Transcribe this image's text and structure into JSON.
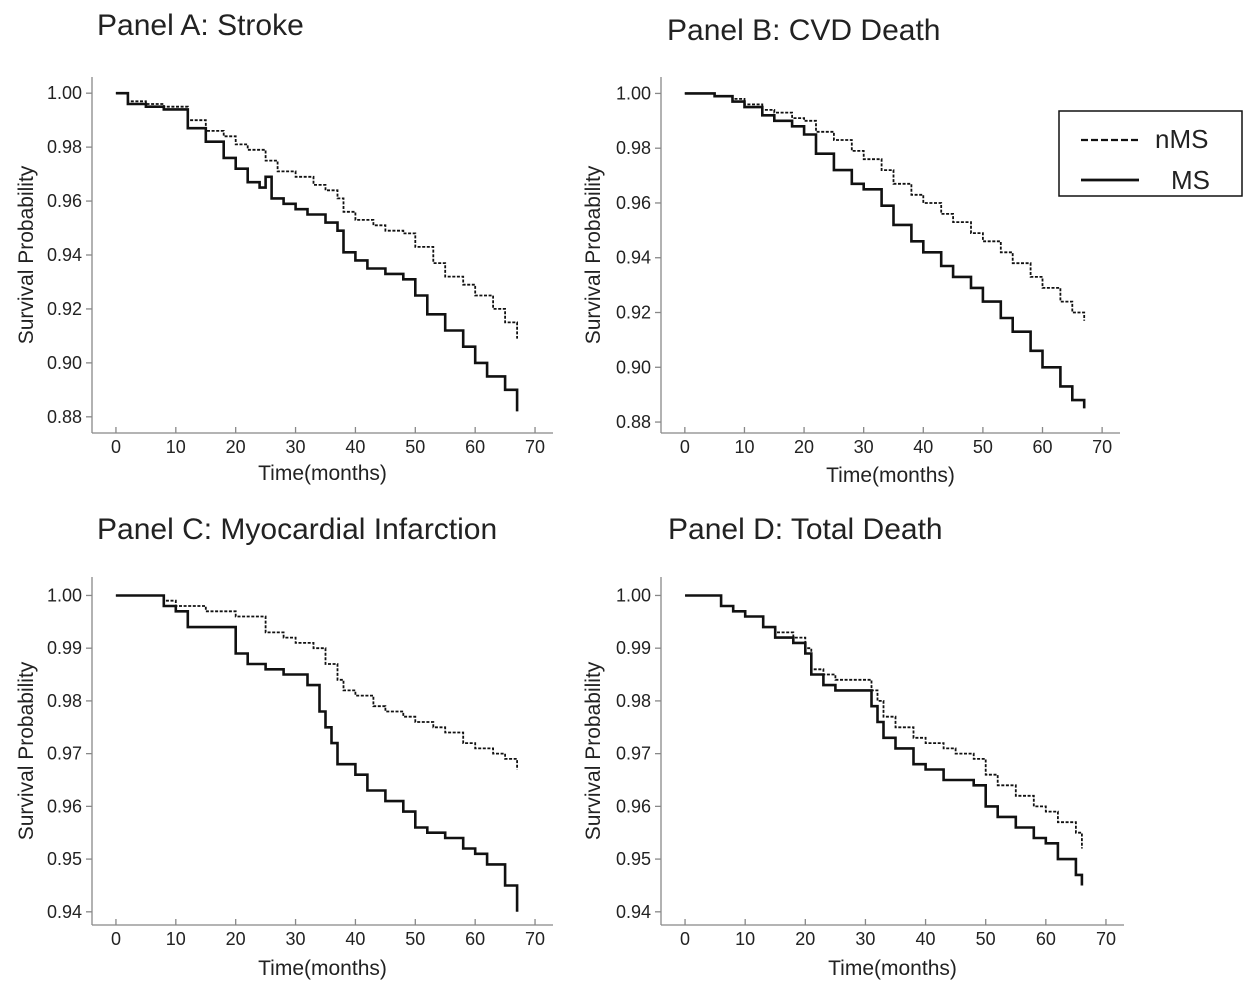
{
  "legend": {
    "entries": [
      "nMS",
      "MS"
    ]
  },
  "chart_data": [
    {
      "type": "line",
      "title": "Panel A: Stroke",
      "xlabel": "Time(months)",
      "ylabel": "Survival Probability",
      "xlim": [
        -4,
        73
      ],
      "ylim": [
        0.874,
        1.006
      ],
      "xticks": [
        0,
        10,
        20,
        30,
        40,
        50,
        60,
        70
      ],
      "yticks": [
        "0.88",
        "0.90",
        "0.92",
        "0.94",
        "0.96",
        "0.98",
        "1.00"
      ],
      "series": [
        {
          "name": "nMS",
          "style": "dashed",
          "x": [
            0,
            2,
            5,
            8,
            10,
            12,
            15,
            18,
            20,
            22,
            25,
            27,
            30,
            33,
            35,
            37,
            38,
            40,
            43,
            45,
            48,
            50,
            53,
            55,
            58,
            60,
            63,
            65,
            67
          ],
          "y": [
            1.0,
            0.997,
            0.996,
            0.995,
            0.995,
            0.99,
            0.986,
            0.984,
            0.981,
            0.979,
            0.975,
            0.971,
            0.969,
            0.966,
            0.964,
            0.961,
            0.956,
            0.953,
            0.951,
            0.949,
            0.948,
            0.943,
            0.937,
            0.932,
            0.929,
            0.925,
            0.92,
            0.915,
            0.909
          ]
        },
        {
          "name": "MS",
          "style": "solid",
          "x": [
            0,
            2,
            5,
            8,
            10,
            12,
            15,
            18,
            20,
            22,
            24,
            25,
            26,
            28,
            30,
            32,
            35,
            37,
            38,
            40,
            42,
            45,
            48,
            50,
            52,
            55,
            58,
            60,
            62,
            65,
            67
          ],
          "y": [
            1.0,
            0.996,
            0.995,
            0.994,
            0.994,
            0.987,
            0.982,
            0.976,
            0.972,
            0.967,
            0.965,
            0.969,
            0.961,
            0.959,
            0.957,
            0.955,
            0.952,
            0.949,
            0.941,
            0.938,
            0.935,
            0.933,
            0.931,
            0.925,
            0.918,
            0.912,
            0.906,
            0.9,
            0.895,
            0.89,
            0.882
          ]
        }
      ]
    },
    {
      "type": "line",
      "title": "Panel B: CVD Death",
      "xlabel": "Time(months)",
      "ylabel": "Survival Probability",
      "xlim": [
        -4,
        73
      ],
      "ylim": [
        0.876,
        1.006
      ],
      "xticks": [
        0,
        10,
        20,
        30,
        40,
        50,
        60,
        70
      ],
      "yticks": [
        "0.88",
        "0.90",
        "0.92",
        "0.94",
        "0.96",
        "0.98",
        "1.00"
      ],
      "series": [
        {
          "name": "nMS",
          "style": "dashed",
          "x": [
            0,
            3,
            5,
            8,
            10,
            13,
            15,
            18,
            20,
            22,
            25,
            28,
            30,
            33,
            35,
            38,
            40,
            43,
            45,
            48,
            50,
            53,
            55,
            58,
            60,
            63,
            65,
            67
          ],
          "y": [
            1.0,
            1.0,
            0.999,
            0.998,
            0.996,
            0.994,
            0.993,
            0.991,
            0.99,
            0.986,
            0.983,
            0.979,
            0.976,
            0.972,
            0.967,
            0.963,
            0.96,
            0.956,
            0.953,
            0.949,
            0.946,
            0.942,
            0.938,
            0.933,
            0.929,
            0.924,
            0.92,
            0.917
          ]
        },
        {
          "name": "MS",
          "style": "solid",
          "x": [
            0,
            3,
            5,
            8,
            10,
            13,
            15,
            18,
            20,
            22,
            25,
            28,
            30,
            33,
            35,
            38,
            40,
            43,
            45,
            48,
            50,
            53,
            55,
            58,
            60,
            63,
            65,
            67
          ],
          "y": [
            1.0,
            1.0,
            0.999,
            0.997,
            0.995,
            0.992,
            0.99,
            0.988,
            0.985,
            0.978,
            0.972,
            0.967,
            0.965,
            0.959,
            0.952,
            0.946,
            0.942,
            0.937,
            0.933,
            0.929,
            0.924,
            0.918,
            0.913,
            0.906,
            0.9,
            0.893,
            0.888,
            0.885
          ]
        }
      ]
    },
    {
      "type": "line",
      "title": "Panel C: Myocardial Infarction",
      "xlabel": "Time(months)",
      "ylabel": "Survival Probability",
      "xlim": [
        -4,
        73
      ],
      "ylim": [
        0.9375,
        1.0035
      ],
      "xticks": [
        0,
        10,
        20,
        30,
        40,
        50,
        60,
        70
      ],
      "yticks": [
        "0.94",
        "0.95",
        "0.96",
        "0.97",
        "0.98",
        "0.99",
        "1.00"
      ],
      "series": [
        {
          "name": "nMS",
          "style": "dashed",
          "x": [
            0,
            5,
            8,
            10,
            12,
            15,
            18,
            20,
            25,
            28,
            30,
            33,
            35,
            37,
            38,
            40,
            43,
            45,
            48,
            50,
            53,
            55,
            58,
            60,
            63,
            65,
            67
          ],
          "y": [
            1.0,
            1.0,
            0.999,
            0.998,
            0.998,
            0.997,
            0.997,
            0.996,
            0.993,
            0.992,
            0.991,
            0.99,
            0.987,
            0.984,
            0.982,
            0.981,
            0.979,
            0.978,
            0.977,
            0.976,
            0.975,
            0.974,
            0.972,
            0.971,
            0.97,
            0.969,
            0.967
          ]
        },
        {
          "name": "MS",
          "style": "solid",
          "x": [
            0,
            5,
            8,
            10,
            12,
            15,
            18,
            20,
            22,
            25,
            28,
            30,
            32,
            34,
            35,
            36,
            37,
            40,
            42,
            45,
            48,
            50,
            52,
            55,
            58,
            60,
            62,
            65,
            67
          ],
          "y": [
            1.0,
            1.0,
            0.998,
            0.997,
            0.994,
            0.994,
            0.994,
            0.989,
            0.987,
            0.986,
            0.985,
            0.985,
            0.983,
            0.978,
            0.975,
            0.972,
            0.968,
            0.966,
            0.963,
            0.961,
            0.959,
            0.956,
            0.955,
            0.954,
            0.952,
            0.951,
            0.949,
            0.945,
            0.94
          ]
        }
      ]
    },
    {
      "type": "line",
      "title": "Panel D: Total Death",
      "xlabel": "Time(months)",
      "ylabel": "Survival Probability",
      "xlim": [
        -4,
        73
      ],
      "ylim": [
        0.9375,
        1.0035
      ],
      "xticks": [
        0,
        10,
        20,
        30,
        40,
        50,
        60,
        70
      ],
      "yticks": [
        "0.94",
        "0.95",
        "0.96",
        "0.97",
        "0.98",
        "0.99",
        "1.00"
      ],
      "series": [
        {
          "name": "nMS",
          "style": "dashed",
          "x": [
            0,
            4,
            6,
            8,
            10,
            13,
            15,
            18,
            20,
            21,
            23,
            25,
            28,
            30,
            31,
            32,
            33,
            35,
            38,
            40,
            43,
            45,
            48,
            50,
            52,
            55,
            58,
            60,
            62,
            65,
            66
          ],
          "y": [
            1.0,
            1.0,
            0.998,
            0.997,
            0.996,
            0.994,
            0.993,
            0.992,
            0.99,
            0.986,
            0.985,
            0.984,
            0.984,
            0.984,
            0.982,
            0.98,
            0.977,
            0.975,
            0.973,
            0.972,
            0.971,
            0.97,
            0.969,
            0.966,
            0.964,
            0.962,
            0.96,
            0.959,
            0.957,
            0.955,
            0.952
          ]
        },
        {
          "name": "MS",
          "style": "solid",
          "x": [
            0,
            4,
            6,
            8,
            10,
            13,
            15,
            18,
            20,
            21,
            23,
            25,
            28,
            30,
            31,
            32,
            33,
            35,
            38,
            40,
            43,
            45,
            48,
            50,
            52,
            55,
            58,
            60,
            62,
            65,
            66
          ],
          "y": [
            1.0,
            1.0,
            0.998,
            0.997,
            0.996,
            0.994,
            0.992,
            0.991,
            0.989,
            0.985,
            0.983,
            0.982,
            0.982,
            0.982,
            0.979,
            0.976,
            0.973,
            0.971,
            0.968,
            0.967,
            0.965,
            0.965,
            0.964,
            0.96,
            0.958,
            0.956,
            0.954,
            0.953,
            0.95,
            0.947,
            0.945
          ]
        }
      ]
    }
  ]
}
